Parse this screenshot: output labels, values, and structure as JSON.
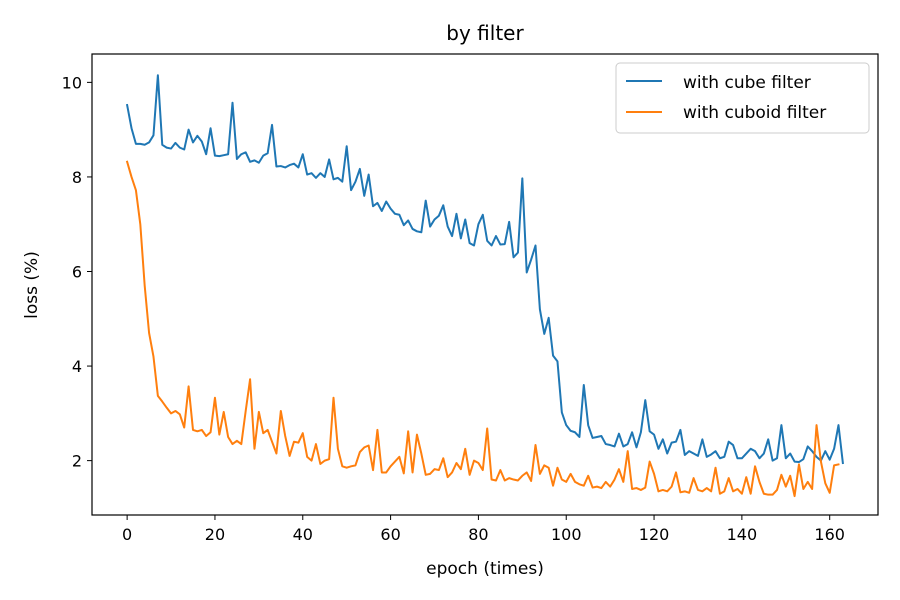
{
  "chart_data": {
    "type": "line",
    "title": "by filter",
    "xlabel": "epoch (times)",
    "ylabel": "loss (%)",
    "xlim": [
      -8,
      171
    ],
    "ylim": [
      0.85,
      10.6
    ],
    "xticks": [
      0,
      20,
      40,
      60,
      80,
      100,
      120,
      140,
      160
    ],
    "yticks": [
      2,
      4,
      6,
      8,
      10
    ],
    "grid": false,
    "legend": "top-right",
    "series": [
      {
        "name": "with cube filter",
        "color": "#1f77b4",
        "y": [
          9.52,
          9.03,
          8.7,
          8.7,
          8.68,
          8.73,
          8.88,
          10.15,
          8.68,
          8.62,
          8.6,
          8.72,
          8.62,
          8.58,
          9.0,
          8.73,
          8.87,
          8.75,
          8.48,
          9.03,
          8.45,
          8.44,
          8.46,
          8.48,
          9.57,
          8.38,
          8.48,
          8.52,
          8.32,
          8.35,
          8.3,
          8.45,
          8.5,
          9.1,
          8.22,
          8.23,
          8.2,
          8.25,
          8.28,
          8.2,
          8.48,
          8.05,
          8.08,
          7.98,
          8.08,
          8.0,
          8.37,
          7.95,
          7.98,
          7.9,
          8.65,
          7.72,
          7.9,
          8.17,
          7.6,
          8.05,
          7.38,
          7.45,
          7.28,
          7.48,
          7.33,
          7.22,
          7.2,
          6.98,
          7.08,
          6.9,
          6.85,
          6.83,
          7.5,
          6.95,
          7.1,
          7.18,
          7.4,
          6.95,
          6.75,
          7.22,
          6.7,
          7.1,
          6.6,
          6.55,
          7.0,
          7.2,
          6.65,
          6.55,
          6.75,
          6.57,
          6.58,
          7.05,
          6.3,
          6.4,
          7.97,
          5.98,
          6.25,
          6.55,
          5.2,
          4.68,
          5.02,
          4.22,
          4.1,
          3.02,
          2.75,
          2.63,
          2.6,
          2.5,
          3.6,
          2.75,
          2.48,
          2.5,
          2.52,
          2.35,
          2.33,
          2.3,
          2.57,
          2.3,
          2.35,
          2.6,
          2.28,
          2.6,
          3.28,
          2.62,
          2.55,
          2.25,
          2.45,
          2.15,
          2.38,
          2.4,
          2.65,
          2.12,
          2.2,
          2.15,
          2.1,
          2.45,
          2.08,
          2.13,
          2.2,
          2.05,
          2.08,
          2.4,
          2.33,
          2.05,
          2.05,
          2.15,
          2.25,
          2.2,
          2.05,
          2.15,
          2.45,
          2.0,
          2.05,
          2.75,
          2.05,
          2.15,
          1.98,
          1.97,
          2.03,
          2.3,
          2.2,
          2.08,
          2.0,
          2.2,
          2.02,
          2.25,
          2.75,
          1.95
        ]
      },
      {
        "name": "with cuboid filter",
        "color": "#ff7f0e",
        "y": [
          8.32,
          8.0,
          7.72,
          7.0,
          5.7,
          4.7,
          4.2,
          3.37,
          3.25,
          3.12,
          3.0,
          3.05,
          2.98,
          2.7,
          3.57,
          2.65,
          2.62,
          2.65,
          2.52,
          2.6,
          3.33,
          2.55,
          3.03,
          2.5,
          2.35,
          2.42,
          2.35,
          3.05,
          3.72,
          2.25,
          3.03,
          2.58,
          2.65,
          2.4,
          2.15,
          3.05,
          2.52,
          2.1,
          2.4,
          2.38,
          2.58,
          2.08,
          2.0,
          2.35,
          1.93,
          2.0,
          2.03,
          3.33,
          2.25,
          1.88,
          1.85,
          1.88,
          1.9,
          2.18,
          2.28,
          2.32,
          1.8,
          2.65,
          1.75,
          1.75,
          1.88,
          1.98,
          2.08,
          1.73,
          2.62,
          1.75,
          2.55,
          2.15,
          1.7,
          1.72,
          1.82,
          1.8,
          2.05,
          1.65,
          1.75,
          1.95,
          1.82,
          2.25,
          1.7,
          2.0,
          1.95,
          1.8,
          2.68,
          1.6,
          1.58,
          1.8,
          1.58,
          1.63,
          1.6,
          1.58,
          1.68,
          1.75,
          1.57,
          2.33,
          1.72,
          1.9,
          1.85,
          1.47,
          1.85,
          1.6,
          1.55,
          1.72,
          1.55,
          1.5,
          1.47,
          1.68,
          1.43,
          1.45,
          1.42,
          1.55,
          1.45,
          1.6,
          1.82,
          1.55,
          2.2,
          1.4,
          1.42,
          1.38,
          1.43,
          1.98,
          1.72,
          1.35,
          1.38,
          1.35,
          1.45,
          1.75,
          1.33,
          1.35,
          1.32,
          1.63,
          1.38,
          1.35,
          1.42,
          1.35,
          1.85,
          1.3,
          1.35,
          1.63,
          1.35,
          1.4,
          1.3,
          1.65,
          1.3,
          1.88,
          1.55,
          1.3,
          1.28,
          1.28,
          1.38,
          1.7,
          1.45,
          1.68,
          1.25,
          1.92,
          1.4,
          1.55,
          1.4,
          2.75,
          1.98,
          1.52,
          1.32,
          1.9,
          1.92
        ]
      }
    ]
  }
}
